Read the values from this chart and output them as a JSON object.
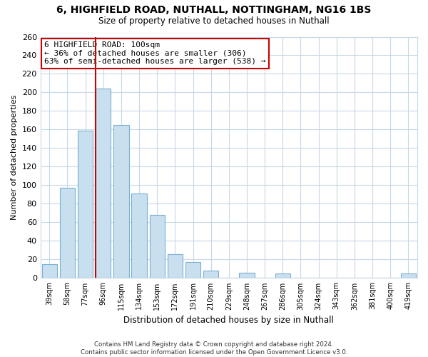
{
  "title": "6, HIGHFIELD ROAD, NUTHALL, NOTTINGHAM, NG16 1BS",
  "subtitle": "Size of property relative to detached houses in Nuthall",
  "xlabel": "Distribution of detached houses by size in Nuthall",
  "ylabel": "Number of detached properties",
  "categories": [
    "39sqm",
    "58sqm",
    "77sqm",
    "96sqm",
    "115sqm",
    "134sqm",
    "153sqm",
    "172sqm",
    "191sqm",
    "210sqm",
    "229sqm",
    "248sqm",
    "267sqm",
    "286sqm",
    "305sqm",
    "324sqm",
    "343sqm",
    "362sqm",
    "381sqm",
    "400sqm",
    "419sqm"
  ],
  "values": [
    15,
    97,
    159,
    204,
    165,
    91,
    68,
    26,
    17,
    8,
    0,
    6,
    0,
    5,
    0,
    0,
    0,
    0,
    0,
    0,
    5
  ],
  "bar_color": "#c8dff0",
  "bar_edge_color": "#7ab0d0",
  "highlight_bar_index": 3,
  "vline_color": "#cc0000",
  "ylim": [
    0,
    260
  ],
  "yticks": [
    0,
    20,
    40,
    60,
    80,
    100,
    120,
    140,
    160,
    180,
    200,
    220,
    240,
    260
  ],
  "annotation_title": "6 HIGHFIELD ROAD: 100sqm",
  "annotation_line1": "← 36% of detached houses are smaller (306)",
  "annotation_line2": "63% of semi-detached houses are larger (538) →",
  "annotation_box_color": "#ffffff",
  "annotation_box_edge": "#cc0000",
  "footer_line1": "Contains HM Land Registry data © Crown copyright and database right 2024.",
  "footer_line2": "Contains public sector information licensed under the Open Government Licence v3.0.",
  "background_color": "#ffffff",
  "grid_color": "#c8d8e8"
}
